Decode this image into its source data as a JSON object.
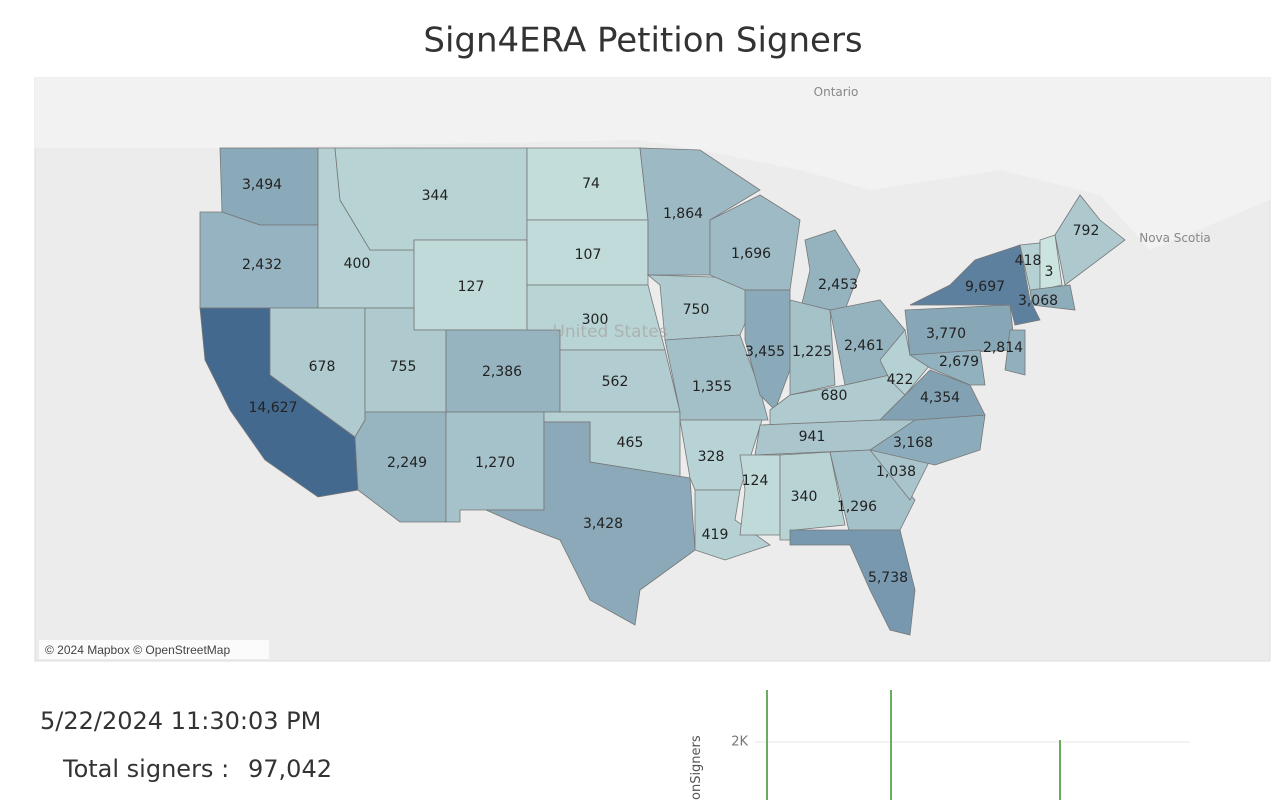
{
  "chart_data": {
    "type": "choropleth",
    "title": "Sign4ERA Petition Signers",
    "background_labels": [
      "Ontario",
      "Nova Scotia",
      "United States"
    ],
    "attribution": "© 2024 Mapbox © OpenStreetMap",
    "color_low": "#cde6e1",
    "color_high": "#44698f",
    "values": [
      3494,
      2432,
      14627,
      400,
      678,
      344,
      127,
      755,
      2249,
      2386,
      1270,
      74,
      107,
      300,
      562,
      465,
      3428,
      1864,
      750,
      1355,
      328,
      419,
      1696,
      3455,
      2453,
      1225,
      2461,
      680,
      941,
      124,
      340,
      1296,
      5738,
      1038,
      3168,
      4354,
      422,
      3770,
      2679,
      2814,
      9697,
      418,
      3,
      3068,
      792
    ],
    "value_labels": [
      "3,494",
      "2,432",
      "14,627",
      "400",
      "678",
      "344",
      "127",
      "755",
      "2,249",
      "2,386",
      "1,270",
      "74",
      "107",
      "300",
      "562",
      "465",
      "3,428",
      "1,864",
      "750",
      "1,355",
      "328",
      "419",
      "1,696",
      "3,455",
      "2,453",
      "1,225",
      "2,461",
      "680",
      "941",
      "124",
      "340",
      "1,296",
      "5,738",
      "1,038",
      "3,168",
      "4,354",
      "422",
      "3,770",
      "2,679",
      "2,814",
      "9,697",
      "418",
      "3",
      "3,068",
      "792"
    ]
  },
  "summary": {
    "timestamp": "5/22/2024 11:30:03 PM",
    "total_label": "Total signers :",
    "total": 97042,
    "total_value_label": "97,042"
  },
  "timeline": {
    "y_label": "onSigners",
    "yticks": [
      {
        "value": 2000,
        "label": "2K"
      }
    ]
  }
}
